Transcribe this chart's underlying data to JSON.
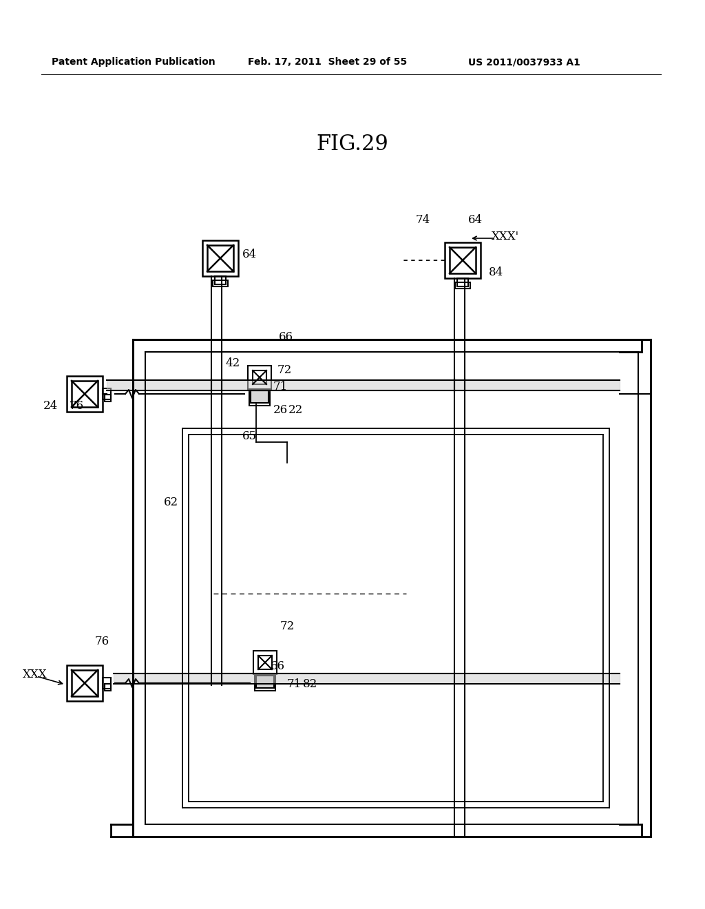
{
  "title": "FIG.29",
  "header_left": "Patent Application Publication",
  "header_mid": "Feb. 17, 2011  Sheet 29 of 55",
  "header_right": "US 2011/0037933 A1",
  "bg_color": "#ffffff",
  "line_color": "#000000",
  "fig_width": 10.24,
  "fig_height": 13.2
}
